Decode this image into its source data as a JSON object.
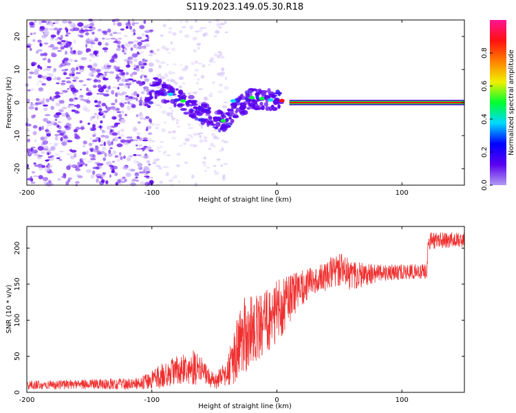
{
  "title": "S119.2023.149.05.30.R18",
  "chart_data": [
    {
      "type": "heatmap",
      "xlabel": "Height of straight line (km)",
      "ylabel": "Frequency (Hz)",
      "xlim": [
        -200,
        150
      ],
      "ylim": [
        -25,
        25
      ],
      "xticks": [
        -200,
        -100,
        0,
        100
      ],
      "yticks": [
        -20,
        -10,
        0,
        10,
        20
      ],
      "grid": false,
      "colorbar": {
        "label": "Normalized spectral amplitude",
        "range": [
          0,
          1
        ],
        "ticks": [
          "0.0",
          "0.2",
          "0.4",
          "0.6",
          "0.8"
        ],
        "colormap": [
          "#b09cf0",
          "#5a00f0",
          "#0000ff",
          "#00d8ff",
          "#00ff30",
          "#f0f000",
          "#ff8000",
          "#ff1010",
          "#ff1493"
        ]
      },
      "ridge": [
        {
          "x": -100,
          "y": 5
        },
        {
          "x": -85,
          "y": 2
        },
        {
          "x": -75,
          "y": 0
        },
        {
          "x": -60,
          "y": -3
        },
        {
          "x": -45,
          "y": -6
        },
        {
          "x": -38,
          "y": -5
        },
        {
          "x": -30,
          "y": -1
        },
        {
          "x": -20,
          "y": 1
        },
        {
          "x": -10,
          "y": 1
        },
        {
          "x": 0,
          "y": 0.5
        },
        {
          "x": 10,
          "y": 0
        },
        {
          "x": 150,
          "y": 0
        }
      ]
    },
    {
      "type": "line",
      "xlabel": "Height of straight line (km)",
      "ylabel": "SNR (10 * v/v)",
      "xlim": [
        -200,
        150
      ],
      "ylim": [
        0,
        230
      ],
      "xticks": [
        -200,
        -100,
        0,
        100
      ],
      "yticks": [
        0,
        50,
        100,
        150,
        200
      ],
      "grid": false,
      "color": "#f03030",
      "envelope": [
        {
          "x": -200,
          "mean": 10,
          "spread": 6
        },
        {
          "x": -110,
          "mean": 12,
          "spread": 8
        },
        {
          "x": -100,
          "mean": 18,
          "spread": 14
        },
        {
          "x": -80,
          "mean": 30,
          "spread": 22
        },
        {
          "x": -65,
          "mean": 35,
          "spread": 25
        },
        {
          "x": -50,
          "mean": 15,
          "spread": 10
        },
        {
          "x": -40,
          "mean": 25,
          "spread": 20
        },
        {
          "x": -32,
          "mean": 60,
          "spread": 45
        },
        {
          "x": -25,
          "mean": 80,
          "spread": 60
        },
        {
          "x": -20,
          "mean": 90,
          "spread": 50
        },
        {
          "x": -10,
          "mean": 95,
          "spread": 45
        },
        {
          "x": 0,
          "mean": 110,
          "spread": 45
        },
        {
          "x": 10,
          "mean": 130,
          "spread": 35
        },
        {
          "x": 20,
          "mean": 145,
          "spread": 25
        },
        {
          "x": 30,
          "mean": 155,
          "spread": 20
        },
        {
          "x": 50,
          "mean": 170,
          "spread": 25
        },
        {
          "x": 60,
          "mean": 162,
          "spread": 22
        },
        {
          "x": 80,
          "mean": 165,
          "spread": 12
        },
        {
          "x": 120,
          "mean": 168,
          "spread": 10
        },
        {
          "x": 121,
          "mean": 210,
          "spread": 12
        },
        {
          "x": 150,
          "mean": 212,
          "spread": 10
        }
      ]
    }
  ]
}
